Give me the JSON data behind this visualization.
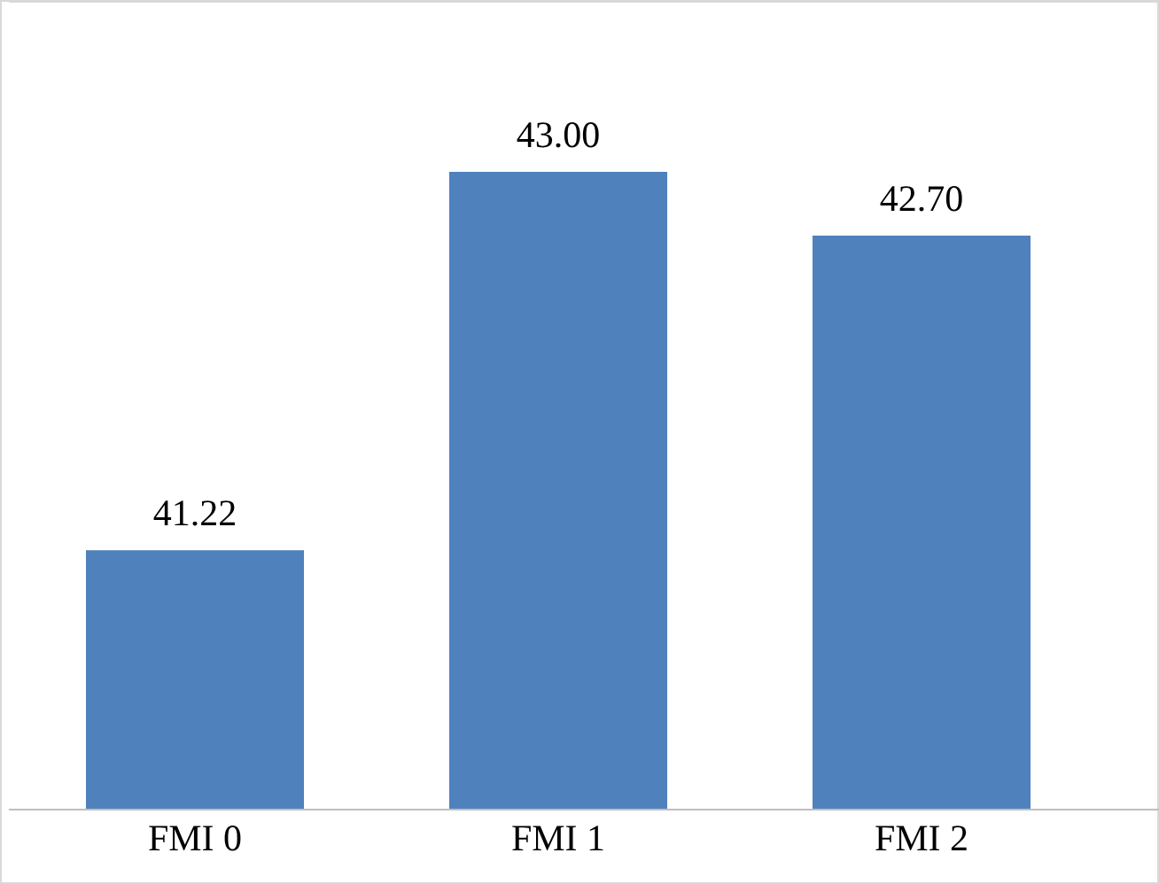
{
  "chart_data": {
    "type": "bar",
    "categories": [
      "FMI 0",
      "FMI 1",
      "FMI 2"
    ],
    "values": [
      41.22,
      43.0,
      42.7
    ],
    "value_labels": [
      "41.22",
      "43.00",
      "42.70"
    ],
    "color": "#4f81bd",
    "ylim": [
      40,
      43.8
    ],
    "tick_labels": "x"
  }
}
